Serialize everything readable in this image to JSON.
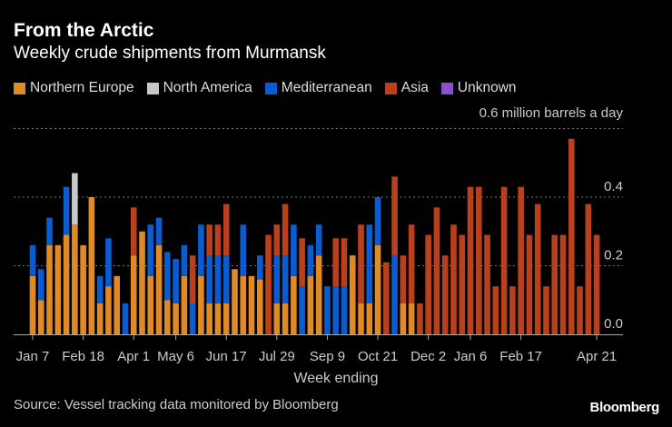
{
  "title": "From the Arctic",
  "subtitle": "Weekly crude shipments from Murmansk",
  "source": "Source: Vessel tracking data monitored by Bloomberg",
  "logo": "Bloomberg",
  "chart_data": {
    "type": "bar",
    "stacked": true,
    "unit_label": "0.6 million barrels a day",
    "xlabel": "Week ending",
    "ylabel": "",
    "ylim": [
      0,
      0.6
    ],
    "y_ticks": [
      {
        "value": 0,
        "label": "0.0"
      },
      {
        "value": 0.2,
        "label": "0.2"
      },
      {
        "value": 0.4,
        "label": "0.4"
      },
      {
        "value": 0.6,
        "label": ""
      }
    ],
    "grid": true,
    "legend": "top-left",
    "x_ticks": [
      {
        "index": 0,
        "label": "Jan 7"
      },
      {
        "index": 6,
        "label": "Feb 18"
      },
      {
        "index": 12,
        "label": "Apr 1"
      },
      {
        "index": 17,
        "label": "May 6"
      },
      {
        "index": 23,
        "label": "Jun 17"
      },
      {
        "index": 29,
        "label": "Jul 29"
      },
      {
        "index": 35,
        "label": "Sep 9"
      },
      {
        "index": 41,
        "label": "Oct 21"
      },
      {
        "index": 47,
        "label": "Dec 2"
      },
      {
        "index": 52,
        "label": "Jan 6"
      },
      {
        "index": 58,
        "label": "Feb 17"
      },
      {
        "index": 67,
        "label": "Apr 21"
      }
    ],
    "series": [
      {
        "name": "Northern Europe",
        "color": "#e08a25",
        "values": [
          0.17,
          0.1,
          0.26,
          0.26,
          0.29,
          0.32,
          0.26,
          0.4,
          0.09,
          0.14,
          0.17,
          0,
          0.23,
          0.3,
          0.17,
          0.26,
          0.1,
          0.09,
          0.17,
          0,
          0.17,
          0.09,
          0.09,
          0.09,
          0.19,
          0.17,
          0.17,
          0.16,
          0,
          0.09,
          0.09,
          0.17,
          0,
          0.17,
          0.23,
          0,
          0,
          0,
          0.23,
          0.09,
          0.09,
          0.26,
          0,
          0,
          0.09,
          0.09,
          0,
          0,
          0,
          0,
          0,
          0,
          0,
          0,
          0,
          0,
          0,
          0,
          0,
          0,
          0,
          0,
          0,
          0,
          0,
          0,
          0,
          0
        ]
      },
      {
        "name": "North America",
        "color": "#c8c8c8",
        "values": [
          0,
          0,
          0,
          0,
          0,
          0.15,
          0,
          0,
          0,
          0,
          0,
          0,
          0,
          0,
          0,
          0,
          0,
          0,
          0,
          0,
          0,
          0,
          0,
          0,
          0,
          0,
          0,
          0,
          0,
          0,
          0,
          0,
          0,
          0,
          0,
          0,
          0,
          0,
          0,
          0,
          0,
          0,
          0,
          0,
          0,
          0,
          0,
          0,
          0,
          0,
          0,
          0,
          0,
          0,
          0,
          0,
          0,
          0,
          0,
          0,
          0,
          0,
          0,
          0,
          0,
          0,
          0,
          0
        ]
      },
      {
        "name": "Mediterranean",
        "color": "#0a5cd0",
        "values": [
          0.09,
          0.09,
          0.08,
          0,
          0.14,
          0,
          0,
          0,
          0.08,
          0.14,
          0,
          0.09,
          0,
          0,
          0.15,
          0.08,
          0.14,
          0.13,
          0.09,
          0.09,
          0.15,
          0.14,
          0.14,
          0.14,
          0,
          0.15,
          0,
          0.07,
          0,
          0.14,
          0.14,
          0.15,
          0.14,
          0.09,
          0.09,
          0.14,
          0.14,
          0.14,
          0,
          0,
          0.23,
          0.14,
          0,
          0.23,
          0,
          0,
          0,
          0,
          0,
          0,
          0,
          0,
          0,
          0,
          0,
          0,
          0,
          0,
          0,
          0,
          0,
          0,
          0,
          0,
          0,
          0,
          0,
          0
        ]
      },
      {
        "name": "Asia",
        "color": "#b8401c",
        "values": [
          0,
          0,
          0,
          0,
          0,
          0,
          0,
          0,
          0,
          0,
          0,
          0,
          0.14,
          0,
          0,
          0,
          0,
          0,
          0,
          0.14,
          0,
          0.09,
          0.09,
          0.15,
          0,
          0,
          0,
          0,
          0.29,
          0.09,
          0.15,
          0,
          0.14,
          0,
          0,
          0,
          0.14,
          0.14,
          0,
          0.23,
          0,
          0,
          0.21,
          0.23,
          0.14,
          0.23,
          0.09,
          0.29,
          0.37,
          0.23,
          0.32,
          0.29,
          0.43,
          0.43,
          0.29,
          0.14,
          0.43,
          0.14,
          0.43,
          0.29,
          0.38,
          0.14,
          0.29,
          0.29,
          0.57,
          0.14,
          0.38,
          0.29
        ]
      },
      {
        "name": "Unknown",
        "color": "#8a4fcf",
        "values": [
          0,
          0,
          0,
          0,
          0,
          0,
          0,
          0,
          0,
          0,
          0,
          0,
          0,
          0,
          0,
          0,
          0,
          0,
          0,
          0,
          0,
          0,
          0,
          0,
          0,
          0,
          0,
          0,
          0,
          0,
          0,
          0,
          0,
          0,
          0,
          0,
          0,
          0,
          0,
          0,
          0,
          0,
          0,
          0,
          0,
          0,
          0,
          0,
          0,
          0,
          0,
          0,
          0,
          0,
          0,
          0,
          0,
          0,
          0,
          0,
          0,
          0,
          0,
          0,
          0,
          0,
          0,
          0
        ]
      }
    ]
  }
}
